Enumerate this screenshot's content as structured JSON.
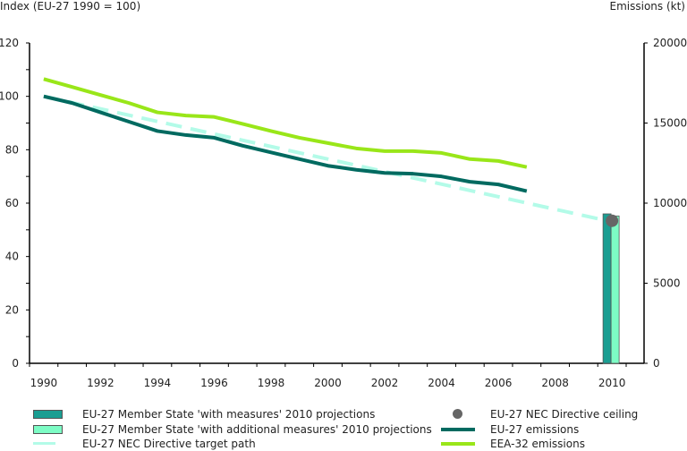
{
  "chart_data": {
    "type": "line",
    "title": "",
    "left_axis": {
      "label": "Index (EU-27 1990 = 100)",
      "ylim": [
        0,
        120
      ],
      "ticks": [
        0,
        20,
        40,
        60,
        80,
        100,
        120
      ],
      "minor_ticks": [
        10,
        30,
        50,
        70,
        90,
        110
      ]
    },
    "right_axis": {
      "label": "Emissions (kt)",
      "ylim": [
        0,
        20000
      ],
      "ticks": [
        0,
        5000,
        10000,
        15000,
        20000
      ]
    },
    "x": [
      1990,
      1991,
      1992,
      1993,
      1994,
      1995,
      1996,
      1997,
      1998,
      1999,
      2000,
      2001,
      2002,
      2003,
      2004,
      2005,
      2006,
      2007,
      2008,
      2009,
      2010
    ],
    "x_tick_labels": [
      "1990",
      "1992",
      "1994",
      "1996",
      "1998",
      "2000",
      "2002",
      "2004",
      "2006",
      "2008",
      "2010"
    ],
    "series": [
      {
        "name": "EU-27 NEC Directive target path",
        "type": "dashed-line",
        "axis": "left",
        "color": "#b3fbe8",
        "x": [
          1990,
          2010
        ],
        "values": [
          100,
          53
        ]
      },
      {
        "name": "EEA-32 emissions",
        "type": "line",
        "axis": "left",
        "color": "#99e619",
        "x": [
          1990,
          1991,
          1992,
          1993,
          1994,
          1995,
          1996,
          1997,
          1998,
          1999,
          2000,
          2001,
          2002,
          2003,
          2004,
          2005,
          2006,
          2007
        ],
        "values": [
          106.5,
          103.5,
          100.5,
          97.5,
          94,
          92.8,
          92.3,
          89.7,
          87,
          84.5,
          82.5,
          80.5,
          79.5,
          79.5,
          78.8,
          76.5,
          75.8,
          73.5
        ]
      },
      {
        "name": "EU-27 emissions",
        "type": "line",
        "axis": "left",
        "color": "#006a60",
        "x": [
          1990,
          1991,
          1992,
          1993,
          1994,
          1995,
          1996,
          1997,
          1998,
          1999,
          2000,
          2001,
          2002,
          2003,
          2004,
          2005,
          2006,
          2007
        ],
        "values": [
          100,
          97.5,
          94,
          90.5,
          87,
          85.5,
          84.5,
          81.5,
          79,
          76.5,
          74,
          72.5,
          71.3,
          71,
          70,
          68,
          67,
          64.5
        ]
      },
      {
        "name": "EU-27 Member State 'with measures' 2010 projections",
        "type": "bar",
        "axis": "right",
        "color": "#1a9e92",
        "x": [
          2010
        ],
        "values": [
          9330
        ]
      },
      {
        "name": "EU-27 Member State 'with additional measures' 2010 projections",
        "type": "bar",
        "axis": "right",
        "color": "#7dfcc5",
        "x": [
          2010
        ],
        "values": [
          9200
        ]
      },
      {
        "name": "EU-27 NEC Directive ceiling",
        "type": "point",
        "axis": "right",
        "color": "#666666",
        "x": [
          2010
        ],
        "values": [
          8900
        ]
      }
    ],
    "legend": {
      "placement": "bottom",
      "entries": [
        {
          "label": "EU-27 Member State 'with measures' 2010 projections",
          "symbol": "box",
          "color": "#1a9e92"
        },
        {
          "label": "EU-27 Member State 'with additional measures' 2010 projections",
          "symbol": "box",
          "color": "#7dfcc5"
        },
        {
          "label": "EU-27 NEC Directive target path",
          "symbol": "dash",
          "color": "#b3fbe8"
        },
        {
          "label": "EU-27 NEC Directive ceiling",
          "symbol": "dot",
          "color": "#666666"
        },
        {
          "label": "EU-27 emissions",
          "symbol": "line",
          "color": "#006a60"
        },
        {
          "label": "EEA-32 emissions",
          "symbol": "line",
          "color": "#99e619"
        }
      ]
    },
    "grid": false
  }
}
